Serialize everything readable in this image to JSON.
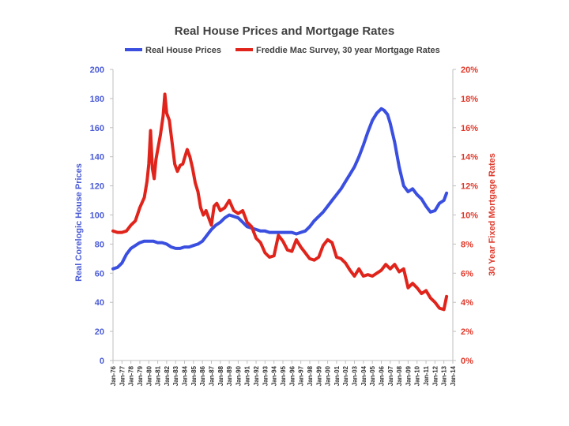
{
  "chart_data": {
    "type": "line",
    "title": "Real House Prices and Mortgage Rates",
    "legend_position": "top",
    "grid": false,
    "left_axis": {
      "label": "Real Corelogic House Prices",
      "range": [
        0,
        200
      ],
      "ticks": [
        "0",
        "20",
        "40",
        "60",
        "80",
        "100",
        "120",
        "140",
        "160",
        "180",
        "200"
      ],
      "color": "#4a5bd6"
    },
    "right_axis": {
      "label": "30 Year Fixed Mortgage Rates",
      "range": [
        0,
        20
      ],
      "ticks": [
        "0%",
        "2%",
        "4%",
        "6%",
        "8%",
        "10%",
        "12%",
        "14%",
        "16%",
        "18%",
        "20%"
      ],
      "color": "#e0392b"
    },
    "x_axis": {
      "range": [
        1976,
        2014
      ],
      "ticks": [
        "Jan-76",
        "Jan-77",
        "Jan-78",
        "Jan-79",
        "Jan-80",
        "Jan-81",
        "Jan-82",
        "Jan-83",
        "Jan-84",
        "Jan-85",
        "Jan-86",
        "Jan-87",
        "Jan-88",
        "Jan-89",
        "Jan-90",
        "Jan-91",
        "Jan-92",
        "Jan-93",
        "Jan-94",
        "Jan-95",
        "Jan-96",
        "Jan-97",
        "Jan-98",
        "Jan-99",
        "Jan-00",
        "Jan-01",
        "Jan-02",
        "Jan-03",
        "Jan-04",
        "Jan-05",
        "Jan-06",
        "Jan-07",
        "Jan-08",
        "Jan-09",
        "Jan-10",
        "Jan-11",
        "Jan-12",
        "Jan-13",
        "Jan-14"
      ]
    },
    "series": [
      {
        "name": "Real House Prices",
        "axis": "left",
        "color": "#3a4fe0",
        "x": [
          1976.0,
          1976.5,
          1977.0,
          1977.5,
          1978.0,
          1978.5,
          1979.0,
          1979.5,
          1980.0,
          1980.5,
          1981.0,
          1981.5,
          1982.0,
          1982.5,
          1983.0,
          1983.5,
          1984.0,
          1984.5,
          1985.0,
          1985.5,
          1986.0,
          1986.5,
          1987.0,
          1987.5,
          1988.0,
          1988.5,
          1989.0,
          1989.5,
          1990.0,
          1990.5,
          1991.0,
          1991.5,
          1992.0,
          1992.5,
          1993.0,
          1993.5,
          1994.0,
          1994.5,
          1995.0,
          1995.5,
          1996.0,
          1996.5,
          1997.0,
          1997.5,
          1998.0,
          1998.5,
          1999.0,
          1999.5,
          2000.0,
          2000.5,
          2001.0,
          2001.5,
          2002.0,
          2002.5,
          2003.0,
          2003.5,
          2004.0,
          2004.5,
          2005.0,
          2005.5,
          2006.0,
          2006.3,
          2006.7,
          2007.0,
          2007.5,
          2008.0,
          2008.5,
          2009.0,
          2009.5,
          2010.0,
          2010.5,
          2011.0,
          2011.5,
          2012.0,
          2012.5,
          2013.0,
          2013.3
        ],
        "values": [
          63,
          64,
          67,
          73,
          77,
          79,
          81,
          82,
          82,
          82,
          81,
          81,
          80,
          78,
          77,
          77,
          78,
          78,
          79,
          80,
          82,
          86,
          90,
          93,
          95,
          98,
          100,
          99,
          98,
          95,
          92,
          91,
          90,
          89,
          89,
          88,
          88,
          88,
          88,
          88,
          88,
          87,
          88,
          89,
          92,
          96,
          99,
          102,
          106,
          110,
          114,
          118,
          123,
          128,
          133,
          140,
          148,
          157,
          165,
          170,
          173,
          172,
          169,
          163,
          150,
          133,
          120,
          116,
          118,
          114,
          111,
          106,
          102,
          103,
          108,
          110,
          115
        ]
      },
      {
        "name": "Freddie Mac Survey, 30 year Mortgage Rates",
        "axis": "right",
        "color": "#e0241b",
        "x": [
          1976.0,
          1976.5,
          1977.0,
          1977.5,
          1978.0,
          1978.5,
          1979.0,
          1979.5,
          1979.8,
          1980.0,
          1980.2,
          1980.4,
          1980.6,
          1980.8,
          1981.0,
          1981.3,
          1981.6,
          1981.8,
          1982.0,
          1982.3,
          1982.6,
          1982.9,
          1983.2,
          1983.5,
          1983.8,
          1984.0,
          1984.3,
          1984.6,
          1984.9,
          1985.2,
          1985.5,
          1985.8,
          1986.1,
          1986.4,
          1986.7,
          1987.0,
          1987.3,
          1987.6,
          1988.0,
          1988.5,
          1989.0,
          1989.5,
          1990.0,
          1990.5,
          1991.0,
          1991.5,
          1992.0,
          1992.5,
          1993.0,
          1993.5,
          1994.0,
          1994.5,
          1995.0,
          1995.5,
          1996.0,
          1996.5,
          1997.0,
          1997.5,
          1998.0,
          1998.5,
          1999.0,
          1999.5,
          2000.0,
          2000.5,
          2001.0,
          2001.5,
          2002.0,
          2002.5,
          2003.0,
          2003.5,
          2004.0,
          2004.5,
          2005.0,
          2005.5,
          2006.0,
          2006.5,
          2007.0,
          2007.5,
          2008.0,
          2008.5,
          2009.0,
          2009.5,
          2010.0,
          2010.5,
          2011.0,
          2011.5,
          2012.0,
          2012.5,
          2013.0,
          2013.3
        ],
        "values": [
          8.9,
          8.8,
          8.8,
          8.9,
          9.3,
          9.6,
          10.5,
          11.2,
          12.3,
          13.5,
          15.8,
          13.2,
          12.5,
          13.8,
          14.5,
          15.5,
          16.8,
          18.3,
          17.0,
          16.5,
          15.0,
          13.5,
          13.0,
          13.4,
          13.5,
          13.9,
          14.5,
          14.0,
          13.2,
          12.2,
          11.6,
          10.5,
          10.0,
          10.3,
          9.8,
          9.3,
          10.6,
          10.8,
          10.3,
          10.5,
          11.0,
          10.3,
          10.1,
          10.3,
          9.5,
          9.2,
          8.4,
          8.1,
          7.4,
          7.1,
          7.2,
          8.6,
          8.2,
          7.6,
          7.5,
          8.3,
          7.8,
          7.4,
          7.0,
          6.9,
          7.1,
          7.9,
          8.3,
          8.1,
          7.1,
          7.0,
          6.7,
          6.2,
          5.8,
          6.3,
          5.8,
          5.9,
          5.8,
          6.0,
          6.2,
          6.6,
          6.3,
          6.6,
          6.1,
          6.3,
          5.0,
          5.3,
          5.0,
          4.6,
          4.8,
          4.3,
          4.0,
          3.6,
          3.5,
          4.4
        ]
      }
    ]
  }
}
